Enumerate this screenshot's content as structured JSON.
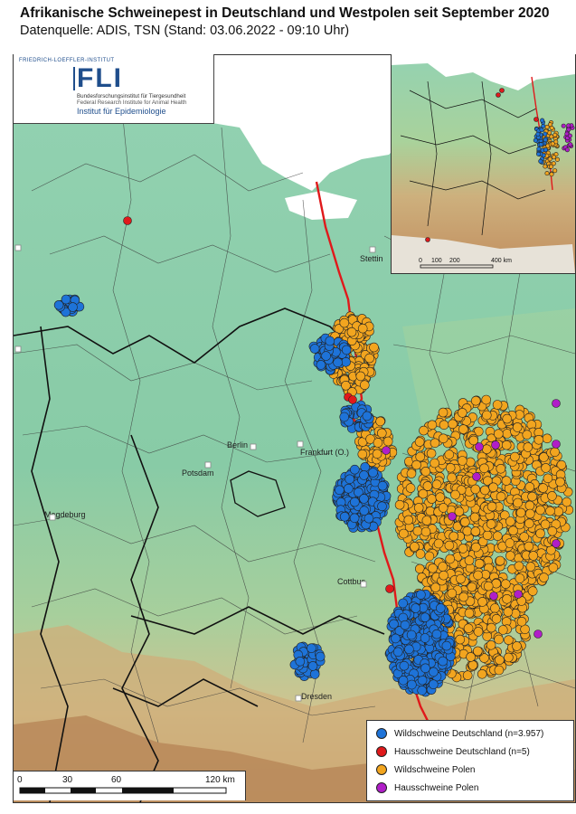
{
  "title": "Afrikanische Schweinepest in Deutschland und Westpolen seit September 2020",
  "subtitle": "Datenquelle: ADIS, TSN (Stand: 03.06.2022 - 09:10 Uhr)",
  "logo": {
    "top_line": "FRIEDRICH-LOEFFLER-INSTITUT",
    "acronym": "FLI",
    "line1": "Bundesforschungsinstitut für Tiergesundheit",
    "line2": "Federal Research Institute for Animal Health",
    "institute": "Institut für Epidemiologie"
  },
  "cities": [
    {
      "name": "Stettin"
    },
    {
      "name": "Berlin"
    },
    {
      "name": "Potsdam"
    },
    {
      "name": "Frankfurt (O.)"
    },
    {
      "name": "Magdeburg"
    },
    {
      "name": "Cottbus"
    },
    {
      "name": "Dresden"
    }
  ],
  "legend": {
    "items": [
      {
        "label": "Wildschweine Deutschland (n=3.957)",
        "color": "#1e73d8"
      },
      {
        "label": "Hausschweine Deutschland (n=5)",
        "color": "#e0191b"
      },
      {
        "label": "Wildschweine Polen",
        "color": "#f2a51f"
      },
      {
        "label": "Hausschweine Polen",
        "color": "#b01ec8"
      }
    ]
  },
  "scale": {
    "ticks": [
      "0",
      "30",
      "60",
      "120 km"
    ]
  },
  "inset_scale": {
    "ticks": [
      "0",
      "100",
      "200",
      "400 km"
    ]
  },
  "colors": {
    "lowland": "#8fcfae",
    "upland": "#d9c99a",
    "mountain": "#c79a6e",
    "water": "#ffffff",
    "border_national": "#e0191b",
    "border_state": "#111111",
    "border_district": "#3a3a3a"
  }
}
